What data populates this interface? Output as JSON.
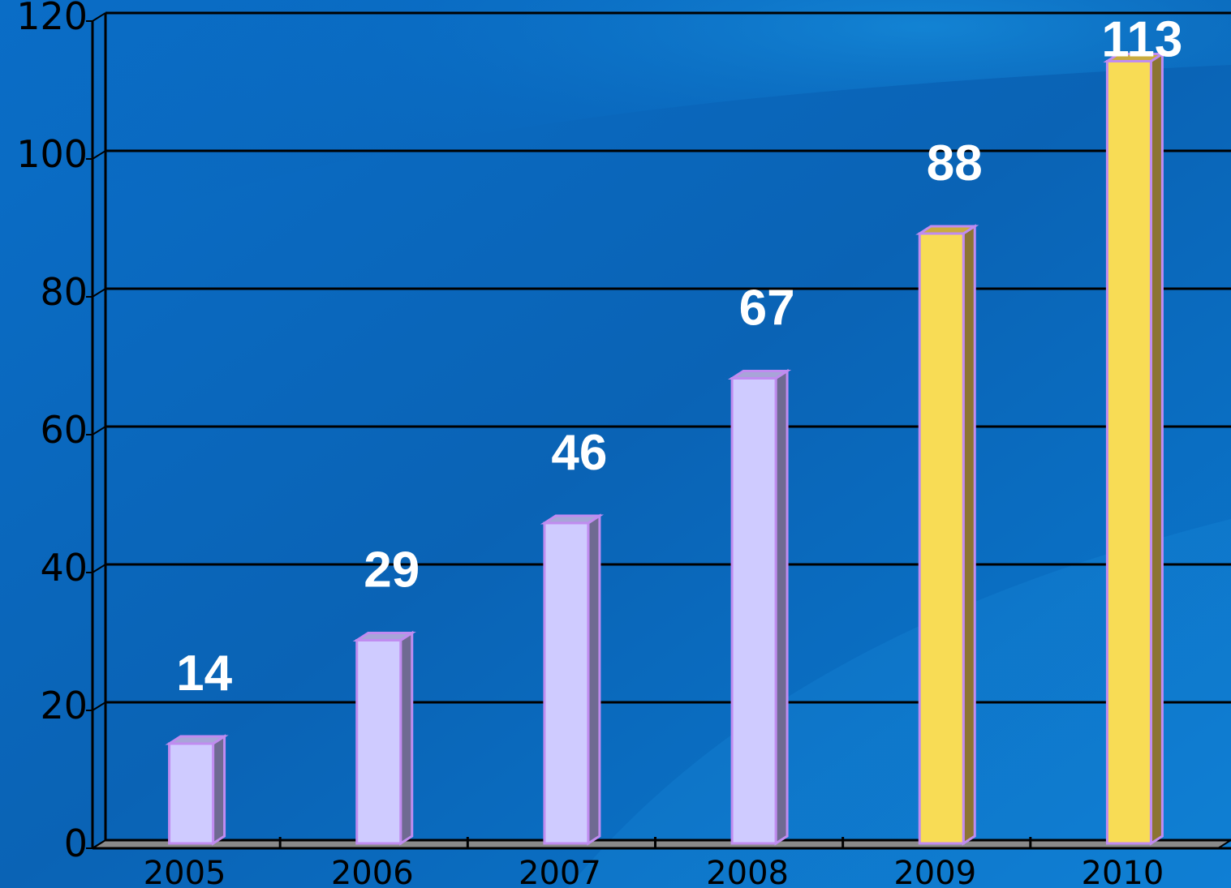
{
  "chart_data": {
    "type": "bar",
    "categories": [
      "2005",
      "2006",
      "2007",
      "2008",
      "2009",
      "2010"
    ],
    "values": [
      14,
      29,
      46,
      67,
      88,
      113
    ],
    "data_labels": [
      "14",
      "29",
      "46",
      "67",
      "88",
      "113"
    ],
    "ylim": [
      0,
      120
    ],
    "yticks": [
      0,
      20,
      40,
      60,
      80,
      100,
      120
    ],
    "ytick_labels": [
      "0",
      "20",
      "40",
      "60",
      "80",
      "100",
      "120"
    ],
    "grid": true,
    "bar_colors": [
      "#cfcbff",
      "#cfcbff",
      "#cfcbff",
      "#cfcbff",
      "#f8dc55",
      "#f8dc55"
    ],
    "bar_outline_color": "#c08cf0",
    "gridline_color": "#000000",
    "background_colors": [
      "#0b7fd8",
      "#0a5fae"
    ]
  }
}
